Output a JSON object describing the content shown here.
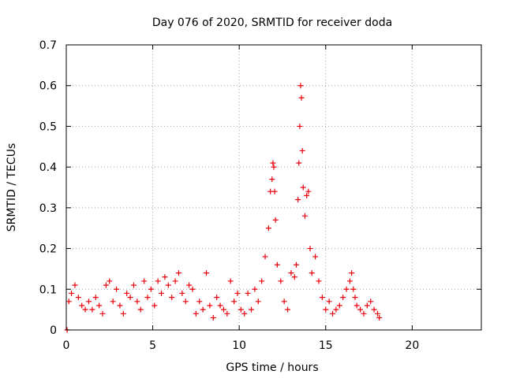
{
  "chart_data": {
    "type": "scatter",
    "title": "Day 076 of 2020, SRMTID for receiver doda",
    "xlabel": "GPS time / hours",
    "ylabel": "SRMTID / TECUs",
    "xlim": [
      0,
      24
    ],
    "ylim": [
      0,
      0.7
    ],
    "xticks": [
      0,
      5,
      10,
      15,
      20
    ],
    "xtick_labels": [
      "0",
      "5",
      "10",
      "15",
      "20"
    ],
    "yticks": [
      0,
      0.1,
      0.2,
      0.3,
      0.4,
      0.5,
      0.6,
      0.7
    ],
    "ytick_labels": [
      "0",
      "0.1",
      "0.2",
      "0.3",
      "0.4",
      "0.5",
      "0.6",
      "0.7"
    ],
    "grid": true,
    "marker": "+",
    "color": "#e8000b",
    "series": [
      {
        "name": "SRMTID",
        "x": [
          0.05,
          0.15,
          0.3,
          0.5,
          0.7,
          0.9,
          1.1,
          1.3,
          1.5,
          1.7,
          1.9,
          2.1,
          2.3,
          2.5,
          2.7,
          2.9,
          3.1,
          3.3,
          3.5,
          3.7,
          3.9,
          4.1,
          4.3,
          4.5,
          4.7,
          4.9,
          5.1,
          5.3,
          5.5,
          5.7,
          5.9,
          6.1,
          6.3,
          6.5,
          6.7,
          6.9,
          7.1,
          7.3,
          7.5,
          7.7,
          7.9,
          8.1,
          8.3,
          8.5,
          8.7,
          8.9,
          9.1,
          9.3,
          9.5,
          9.7,
          9.9,
          10.1,
          10.3,
          10.5,
          10.7,
          10.9,
          11.1,
          11.3,
          11.5,
          11.7,
          11.8,
          11.9,
          11.95,
          12.0,
          12.05,
          12.1,
          12.2,
          12.4,
          12.6,
          12.8,
          13.0,
          13.2,
          13.3,
          13.4,
          13.45,
          13.5,
          13.55,
          13.6,
          13.65,
          13.7,
          13.8,
          13.9,
          14.0,
          14.1,
          14.2,
          14.4,
          14.6,
          14.8,
          15.0,
          15.2,
          15.4,
          15.6,
          15.8,
          16.0,
          16.2,
          16.4,
          16.5,
          16.6,
          16.7,
          16.8,
          17.0,
          17.2,
          17.4,
          17.6,
          17.8,
          18.0,
          18.1
        ],
        "y": [
          0.0,
          0.07,
          0.09,
          0.11,
          0.08,
          0.06,
          0.05,
          0.07,
          0.05,
          0.08,
          0.06,
          0.04,
          0.11,
          0.12,
          0.07,
          0.1,
          0.06,
          0.04,
          0.09,
          0.08,
          0.11,
          0.07,
          0.05,
          0.12,
          0.08,
          0.1,
          0.06,
          0.12,
          0.09,
          0.13,
          0.11,
          0.08,
          0.12,
          0.14,
          0.09,
          0.07,
          0.11,
          0.1,
          0.04,
          0.07,
          0.05,
          0.14,
          0.06,
          0.03,
          0.08,
          0.06,
          0.05,
          0.04,
          0.12,
          0.07,
          0.09,
          0.05,
          0.04,
          0.09,
          0.05,
          0.1,
          0.07,
          0.12,
          0.18,
          0.25,
          0.34,
          0.37,
          0.41,
          0.4,
          0.34,
          0.27,
          0.16,
          0.12,
          0.07,
          0.05,
          0.14,
          0.13,
          0.16,
          0.32,
          0.41,
          0.5,
          0.6,
          0.57,
          0.44,
          0.35,
          0.28,
          0.33,
          0.34,
          0.2,
          0.14,
          0.18,
          0.12,
          0.08,
          0.05,
          0.07,
          0.04,
          0.05,
          0.06,
          0.08,
          0.1,
          0.12,
          0.14,
          0.1,
          0.08,
          0.06,
          0.05,
          0.04,
          0.06,
          0.07,
          0.05,
          0.04,
          0.03
        ]
      }
    ]
  }
}
